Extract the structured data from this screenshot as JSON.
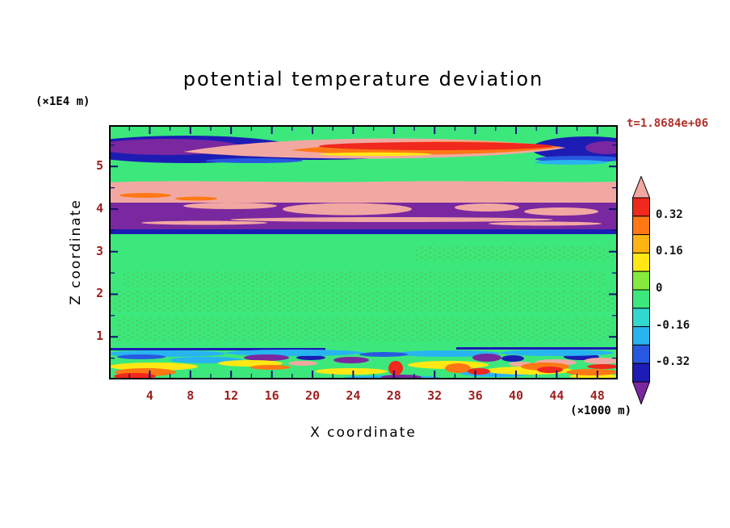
{
  "header": {
    "title": "potential temperature deviation",
    "time_label": "t=1.8684e+06"
  },
  "axes": {
    "y_unit_label": "(×1E4 m)",
    "x_unit_label": "(×1000 m)",
    "x_label": "X coordinate",
    "y_label": "Z coordinate"
  },
  "chart_data": {
    "type": "filled_contour",
    "title": "potential temperature deviation",
    "xlabel": "X coordinate",
    "ylabel": "Z coordinate",
    "x_units": "×1000 m",
    "z_units": "×1E4 m",
    "time_annotation": "t=1.8684e+06",
    "x_range": [
      0,
      50
    ],
    "z_range": [
      0,
      5.97
    ],
    "x_ticks": [
      4,
      8,
      12,
      16,
      20,
      24,
      28,
      32,
      36,
      40,
      44,
      48
    ],
    "x_minor_tick_step": 2,
    "z_ticks": [
      1,
      2,
      3,
      4,
      5
    ],
    "z_minor_tick_step": 0.5,
    "contour_interval": 0.08,
    "colorbar": {
      "labels": [
        "0.32",
        "0.16",
        "0",
        "-0.16",
        "-0.32"
      ],
      "label_boundary_indices": [
        1,
        3,
        5,
        7,
        9
      ],
      "tip_top_color": "#f2a8a2",
      "tip_bottom_color": "#7a28a0",
      "segments_top_to_bottom": [
        {
          "range": [
            0.32,
            0.4
          ],
          "color": "#f0281e"
        },
        {
          "range": [
            0.24,
            0.32
          ],
          "color": "#ff7814"
        },
        {
          "range": [
            0.16,
            0.24
          ],
          "color": "#ffb414"
        },
        {
          "range": [
            0.08,
            0.16
          ],
          "color": "#ffe814"
        },
        {
          "range": [
            0.0,
            0.08
          ],
          "color": "#87e93c"
        },
        {
          "range": [
            -0.08,
            0.0
          ],
          "color": "#3ce87c"
        },
        {
          "range": [
            -0.16,
            -0.08
          ],
          "color": "#30d8d0"
        },
        {
          "range": [
            -0.24,
            -0.16
          ],
          "color": "#28b4f0"
        },
        {
          "range": [
            -0.32,
            -0.24
          ],
          "color": "#2858e0"
        },
        {
          "range": [
            -0.4,
            -0.32
          ],
          "color": "#1c1cb4"
        }
      ]
    },
    "palette": {
      "green": "#3ce87c",
      "speckle": "#4cd45e",
      "salmon": "#f2a8a2",
      "purple": "#7a28a0",
      "navy": "#1c1cb4",
      "blue": "#2858e0",
      "cyan": "#28b4f0",
      "yellow": "#ffe814",
      "orange": "#ff7814",
      "red": "#f0281e",
      "frame": "#000000",
      "tick": "#101078",
      "tick_label_color": "#a02020",
      "time_label_color": "#b2302a"
    },
    "field_grid": {
      "description": "Estimated potential temperature deviation values read from the filled contours; rows ordered top (high z) to bottom (low z).",
      "x_values": [
        2,
        6,
        10,
        14,
        18,
        22,
        26,
        30,
        34,
        38,
        42,
        46,
        50
      ],
      "z_values": [
        5.5,
        5.0,
        4.6,
        4.1,
        3.7,
        3.5,
        3.0,
        2.0,
        1.0,
        0.3
      ],
      "values": [
        [
          -0.45,
          -0.42,
          -0.35,
          0.12,
          0.3,
          0.38,
          0.42,
          0.45,
          0.42,
          0.38,
          0.3,
          -0.25,
          -0.45
        ],
        [
          0.02,
          0.04,
          0.05,
          0.08,
          0.1,
          0.1,
          0.08,
          0.06,
          0.05,
          0.04,
          0.02,
          0.0,
          -0.05
        ],
        [
          0.42,
          0.43,
          0.44,
          0.45,
          0.44,
          0.43,
          0.44,
          0.45,
          0.44,
          0.43,
          0.44,
          0.45,
          0.42
        ],
        [
          -0.44,
          -0.44,
          -0.42,
          0.42,
          0.43,
          -0.44,
          -0.42,
          0.42,
          -0.44,
          -0.42,
          0.42,
          -0.44,
          -0.44
        ],
        [
          -0.42,
          0.41,
          -0.42,
          -0.4,
          0.42,
          -0.42,
          -0.4,
          0.41,
          -0.42,
          -0.42,
          0.41,
          -0.42,
          -0.42
        ],
        [
          -0.3,
          -0.3,
          -0.28,
          -0.3,
          -0.3,
          -0.28,
          -0.3,
          -0.3,
          -0.28,
          -0.3,
          -0.3,
          -0.28,
          -0.3
        ],
        [
          0.02,
          -0.03,
          0.01,
          -0.02,
          0.03,
          -0.01,
          0.02,
          -0.02,
          0.01,
          0.03,
          -0.02,
          0.01,
          -0.03
        ],
        [
          -0.02,
          0.03,
          -0.01,
          0.02,
          -0.03,
          0.01,
          -0.02,
          0.02,
          -0.01,
          0.03,
          -0.02,
          0.01,
          0.02
        ],
        [
          0.01,
          -0.02,
          0.03,
          -0.01,
          0.02,
          -0.03,
          0.01,
          0.02,
          -0.02,
          0.01,
          -0.01,
          0.03,
          -0.02
        ],
        [
          0.35,
          -0.22,
          0.15,
          -0.42,
          0.05,
          0.32,
          -0.12,
          0.44,
          -0.36,
          0.4,
          -0.44,
          0.25,
          0.42
        ]
      ]
    }
  }
}
